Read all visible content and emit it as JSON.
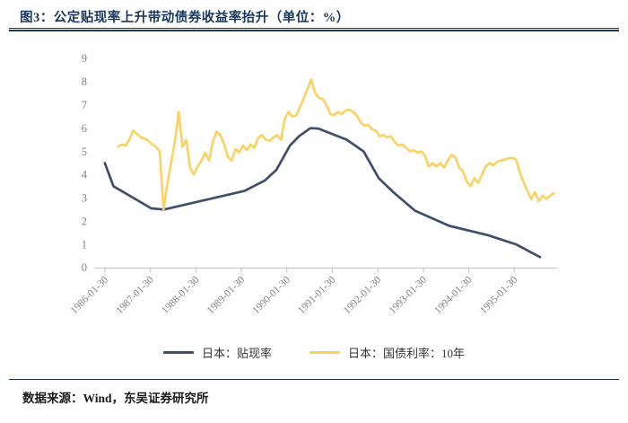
{
  "header": {
    "title": "图3：公定贴现率上升带动债券收益率抬升（单位：%）"
  },
  "footer": {
    "source": "数据来源：Wind，东吴证券研究所"
  },
  "colors": {
    "title_navy": "#17375E",
    "axis_text_gray": "#808080",
    "axis_line_gray": "#C8C8C8"
  },
  "chart_data": {
    "type": "line",
    "title": "公定贴现率上升带动债券收益率抬升",
    "unit": "%",
    "ylim": [
      0,
      9
    ],
    "yticks": [
      0,
      1,
      2,
      3,
      4,
      5,
      6,
      7,
      8,
      9
    ],
    "grid": false,
    "legend_position": "bottom",
    "xtick_labels": [
      "1986-01-30",
      "1987-01-30",
      "1988-01-30",
      "1989-01-30",
      "1990-01-30",
      "1991-01-30",
      "1992-01-30",
      "1993-01-30",
      "1994-01-30",
      "1995-01-30"
    ],
    "series": [
      {
        "name": "日本：贴现率",
        "color": "#3F4E69",
        "points": [
          [
            1986.08,
            4.5
          ],
          [
            1986.27,
            3.5
          ],
          [
            1987.1,
            2.55
          ],
          [
            1987.38,
            2.5
          ],
          [
            1989.15,
            3.3
          ],
          [
            1989.6,
            3.75
          ],
          [
            1989.85,
            4.2
          ],
          [
            1990.15,
            5.25
          ],
          [
            1990.35,
            5.65
          ],
          [
            1990.6,
            6.0
          ],
          [
            1990.78,
            5.98
          ],
          [
            1991.4,
            5.5
          ],
          [
            1991.77,
            5.0
          ],
          [
            1992.1,
            3.85
          ],
          [
            1992.42,
            3.25
          ],
          [
            1992.9,
            2.45
          ],
          [
            1993.65,
            1.8
          ],
          [
            1994.5,
            1.4
          ],
          [
            1995.12,
            1.0
          ],
          [
            1995.65,
            0.45
          ]
        ]
      },
      {
        "name": "日本：国债利率：10年",
        "color": "#FAD162",
        "x_start": 1986.37,
        "x_step_months": 1,
        "values": [
          5.2,
          5.3,
          5.25,
          5.5,
          5.9,
          5.75,
          5.6,
          5.55,
          5.45,
          5.3,
          5.2,
          5.0,
          2.5,
          3.6,
          4.5,
          5.4,
          6.7,
          5.2,
          5.5,
          4.3,
          4.0,
          4.35,
          4.6,
          4.95,
          4.6,
          5.4,
          5.85,
          5.7,
          5.3,
          4.75,
          4.6,
          5.1,
          4.95,
          5.25,
          5.05,
          5.3,
          5.15,
          5.6,
          5.7,
          5.5,
          5.45,
          5.6,
          5.7,
          5.5,
          6.4,
          6.7,
          6.5,
          6.55,
          6.9,
          7.3,
          7.7,
          8.1,
          7.5,
          7.3,
          7.25,
          7.0,
          6.6,
          6.55,
          6.7,
          6.6,
          6.75,
          6.8,
          6.7,
          6.55,
          6.25,
          6.1,
          6.15,
          5.95,
          5.9,
          5.65,
          5.7,
          5.6,
          5.65,
          5.4,
          5.25,
          5.3,
          5.15,
          5.0,
          5.05,
          4.95,
          5.0,
          4.8,
          4.35,
          4.5,
          4.35,
          4.5,
          4.3,
          4.6,
          4.85,
          4.75,
          4.3,
          4.15,
          3.7,
          3.5,
          3.85,
          3.65,
          4.0,
          4.35,
          4.5,
          4.4,
          4.55,
          4.6,
          4.65,
          4.7,
          4.72,
          4.65,
          4.1,
          3.67,
          3.3,
          2.95,
          3.25,
          2.85,
          3.1,
          2.95,
          3.1,
          3.2
        ]
      }
    ]
  }
}
